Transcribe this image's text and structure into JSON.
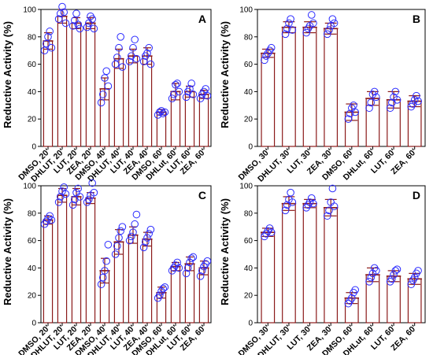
{
  "colors": {
    "bar": "#8b1a1a",
    "points": "#2b2bff"
  },
  "chart_data": [
    {
      "panel_label": "A",
      "type": "bar",
      "ylabel": "Reductive Activity (%)",
      "ylim": [
        0,
        100
      ],
      "yticks": [
        "0",
        "20",
        "40",
        "60",
        "80",
        "100"
      ],
      "categories": [
        "DMSO, 20'",
        "DHLUT, 20'",
        "LUT, 20'",
        "ZEA, 20'",
        "DMSO, 40'",
        "DHLUT, 40'",
        "LUT, 40'",
        "ZEA, 40'",
        "DMSO, 60'",
        "DHLut, 60'",
        "LUT, 60'",
        "ZEA, 60'"
      ],
      "values": [
        77,
        95,
        90,
        90,
        42,
        64,
        66,
        66,
        25,
        40,
        40,
        38
      ],
      "sd": [
        6,
        5,
        4,
        4,
        8,
        7,
        5,
        6,
        2,
        6,
        4,
        3
      ],
      "points": [
        [
          70,
          75,
          80,
          84,
          72
        ],
        [
          93,
          97,
          102,
          98,
          90
        ],
        [
          88,
          92,
          97,
          89,
          86
        ],
        [
          87,
          90,
          95,
          93,
          86
        ],
        [
          32,
          38,
          50,
          55,
          44
        ],
        [
          60,
          65,
          72,
          80,
          58
        ],
        [
          62,
          66,
          72,
          78,
          64
        ],
        [
          62,
          66,
          68,
          72,
          60
        ],
        [
          23,
          25,
          26,
          24,
          25
        ],
        [
          35,
          38,
          45,
          46,
          40
        ],
        [
          36,
          40,
          42,
          46,
          38
        ],
        [
          35,
          38,
          40,
          42,
          37
        ]
      ]
    },
    {
      "panel_label": "B",
      "type": "bar",
      "ylabel": "Reductive Activity (%)",
      "ylim": [
        0,
        100
      ],
      "yticks": [
        "0",
        "20",
        "40",
        "60",
        "80",
        "100"
      ],
      "categories": [
        "DMSO, 30'",
        "DHLUT, 30'",
        "LUT, 30'",
        "ZEA, 30'",
        "DMSO, 60'",
        "DHLut, 60'",
        "LUT, 60'",
        "ZEA, 60'"
      ],
      "values": [
        68,
        87,
        87,
        86,
        25,
        35,
        34,
        33
      ],
      "sd": [
        3,
        4,
        4,
        4,
        6,
        5,
        6,
        4
      ],
      "points": [
        [
          63,
          66,
          68,
          70,
          72
        ],
        [
          82,
          86,
          90,
          93,
          85
        ],
        [
          83,
          86,
          88,
          96,
          90
        ],
        [
          82,
          85,
          88,
          93,
          90
        ],
        [
          20,
          24,
          28,
          30,
          25
        ],
        [
          28,
          32,
          38,
          40,
          36
        ],
        [
          28,
          32,
          36,
          40,
          34
        ],
        [
          29,
          31,
          34,
          37,
          33
        ]
      ]
    },
    {
      "panel_label": "C",
      "type": "bar",
      "ylabel": "Reductive Activity (%)",
      "ylim": [
        0,
        100
      ],
      "yticks": [
        "0",
        "20",
        "40",
        "60",
        "80",
        "100"
      ],
      "categories": [
        "DMSO, 20'",
        "DHLUT, 20'",
        "LUT, 20'",
        "ZEA, 20'",
        "DMSO, 40'",
        "DHLUT, 40'",
        "LUT, 40'",
        "ZEA, 40'",
        "DMSO, 60'",
        "DHLut, 60'",
        "LUT, 60'",
        "ZEA, 60'"
      ],
      "values": [
        75,
        93,
        92,
        91,
        38,
        59,
        64,
        61,
        22,
        41,
        43,
        40
      ],
      "sd": [
        3,
        5,
        6,
        4,
        9,
        9,
        6,
        5,
        4,
        3,
        5,
        5
      ],
      "points": [
        [
          72,
          74,
          76,
          78,
          75
        ],
        [
          88,
          92,
          96,
          99,
          94
        ],
        [
          86,
          90,
          95,
          98,
          92
        ],
        [
          88,
          90,
          93,
          102,
          95
        ],
        [
          28,
          33,
          38,
          45,
          57
        ],
        [
          50,
          56,
          62,
          67,
          70
        ],
        [
          60,
          63,
          66,
          72,
          79
        ],
        [
          55,
          59,
          62,
          65,
          68
        ],
        [
          18,
          20,
          23,
          25,
          26
        ],
        [
          38,
          40,
          42,
          44,
          40
        ],
        [
          36,
          40,
          44,
          47,
          48
        ],
        [
          34,
          38,
          41,
          43,
          45
        ]
      ]
    },
    {
      "panel_label": "D",
      "type": "bar",
      "ylabel": "Reductive Activity (%)",
      "ylim": [
        0,
        100
      ],
      "yticks": [
        "0",
        "20",
        "40",
        "60",
        "80",
        "100"
      ],
      "categories": [
        "DMSO, 30'",
        "DHLUT, 30'",
        "LUT, 30'",
        "ZEA, 30'",
        "DMSO, 60'",
        "DHLut, 60'",
        "LUT, 60'",
        "ZEA, 60'"
      ],
      "values": [
        66,
        87,
        87,
        84,
        18,
        35,
        34,
        32
      ],
      "sd": [
        3,
        5,
        3,
        6,
        4,
        5,
        4,
        4
      ],
      "points": [
        [
          63,
          65,
          67,
          69,
          66
        ],
        [
          82,
          86,
          90,
          95,
          88
        ],
        [
          84,
          86,
          88,
          91,
          87
        ],
        [
          78,
          82,
          88,
          98,
          85
        ],
        [
          14,
          16,
          18,
          22,
          24
        ],
        [
          30,
          33,
          36,
          40,
          38
        ],
        [
          30,
          32,
          35,
          38,
          39
        ],
        [
          28,
          31,
          33,
          36,
          38
        ]
      ]
    }
  ]
}
